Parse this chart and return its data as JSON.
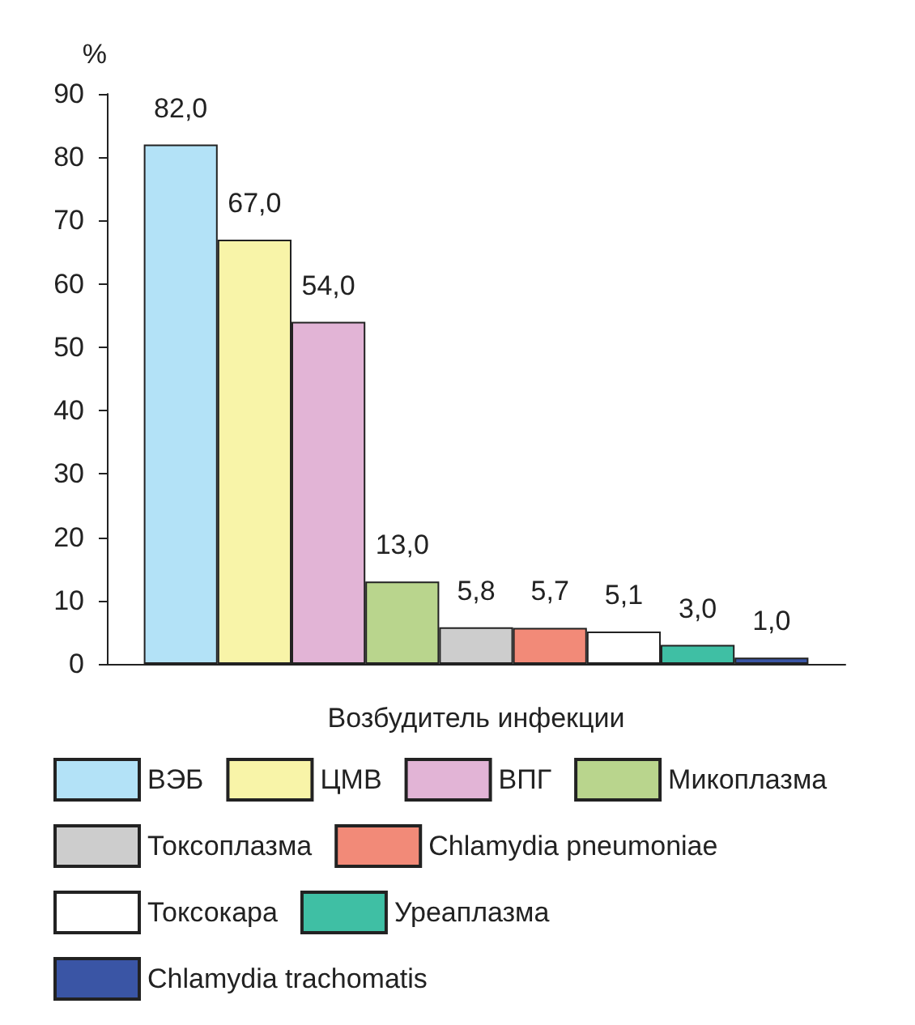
{
  "chart_data": {
    "type": "bar",
    "ylabel": "%",
    "xlabel": "Возбудитель инфекции",
    "categories": [
      null
    ],
    "ylim": [
      0,
      90
    ],
    "yticks": [
      0,
      10,
      20,
      30,
      40,
      50,
      60,
      70,
      80,
      90
    ],
    "legend": "bottom",
    "series": [
      {
        "name": "ВЭБ",
        "color": "#b3e2f7",
        "values": [
          82.0
        ],
        "value_labels": [
          "82,0"
        ]
      },
      {
        "name": "ЦМВ",
        "color": "#f8f4a8",
        "values": [
          67.0
        ],
        "value_labels": [
          "67,0"
        ]
      },
      {
        "name": "ВПГ",
        "color": "#e2b4d6",
        "values": [
          54.0
        ],
        "value_labels": [
          "54,0"
        ]
      },
      {
        "name": "Микоплазма",
        "color": "#b9d58d",
        "values": [
          13.0
        ],
        "value_labels": [
          "13,0"
        ]
      },
      {
        "name": "Токсоплазма",
        "color": "#cdcdcd",
        "values": [
          5.8
        ],
        "value_labels": [
          "5,8"
        ]
      },
      {
        "name": "Chlamydia pneumoniae",
        "color": "#f28a78",
        "values": [
          5.7
        ],
        "value_labels": [
          "5,7"
        ]
      },
      {
        "name": "Токсокара",
        "color": "#ffffff",
        "values": [
          5.1
        ],
        "value_labels": [
          "5,1"
        ]
      },
      {
        "name": "Уреаплазма",
        "color": "#3fbfa4",
        "values": [
          3.0
        ],
        "value_labels": [
          "3,0"
        ]
      },
      {
        "name": "Chlamydia trachomatis",
        "color": "#3a55a5",
        "values": [
          1.0
        ],
        "value_labels": [
          "1,0"
        ]
      }
    ]
  }
}
